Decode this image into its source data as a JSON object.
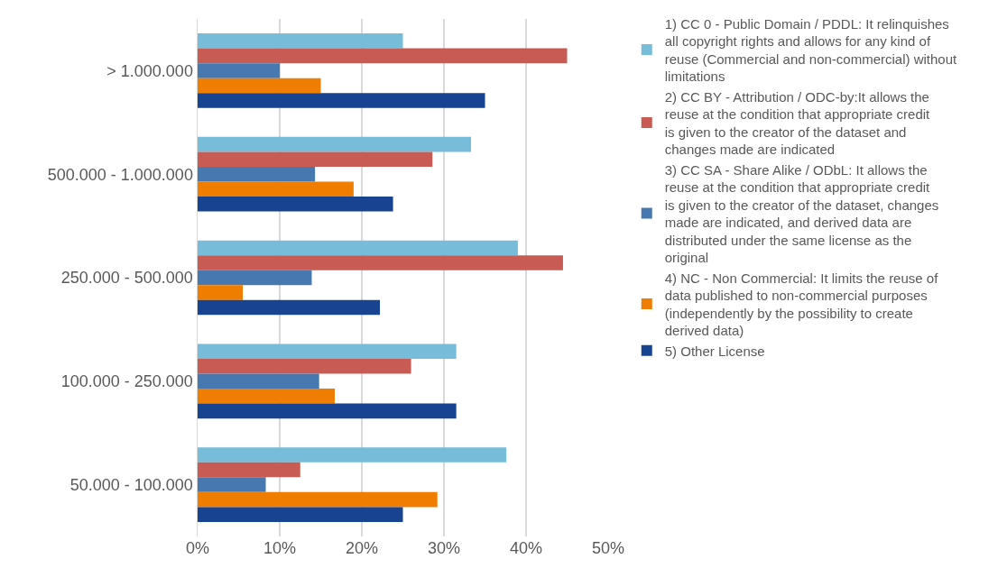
{
  "chart_data": {
    "type": "bar",
    "orientation": "horizontal",
    "categories": [
      "> 1.000.000",
      "500.000 - 1.000.000",
      "250.000 - 500.000",
      "100.000 - 250.000",
      "50.000 - 100.000"
    ],
    "series": [
      {
        "name": "1) CC 0 - Public Domain / PDDL: It relinquishes all copyright rights and allows for any kind of reuse (Commercial and non-commercial) without limitations",
        "color": "#77bcd9",
        "values": [
          25.0,
          33.3,
          39.0,
          31.5,
          37.6
        ]
      },
      {
        "name": "2) CC BY - Attribution / ODC-by:It allows the reuse at the condition that appropriate credit is given to the creator of the dataset and changes made are indicated",
        "color": "#c85c55",
        "values": [
          45.0,
          28.6,
          44.5,
          26.0,
          12.5
        ]
      },
      {
        "name": "3) CC SA - Share Alike / ODbL: It allows the reuse at the condition that appropriate credit is given to the creator of the dataset, changes made are indicated, and derived data are distributed under the same license as the original",
        "color": "#4779b0",
        "values": [
          10.0,
          14.3,
          13.9,
          14.8,
          8.3
        ]
      },
      {
        "name": "4) NC - Non Commercial: It limits the reuse of data published to non-commercial purposes (independently by the possibility to create derived data)",
        "color": "#ef7d00",
        "values": [
          15.0,
          19.0,
          5.5,
          16.7,
          29.2
        ]
      },
      {
        "name": "5) Other License",
        "color": "#184391",
        "values": [
          35.0,
          23.8,
          22.2,
          31.5,
          25.0
        ]
      }
    ],
    "xlim": [
      0,
      50
    ],
    "xticks": [
      {
        "value": 0,
        "label": "0%"
      },
      {
        "value": 10,
        "label": "10%"
      },
      {
        "value": 20,
        "label": "20%"
      },
      {
        "value": 30,
        "label": "30%"
      },
      {
        "value": 40,
        "label": "40%"
      },
      {
        "value": 50,
        "label": "50%"
      }
    ],
    "grid": "x",
    "legend": "right"
  }
}
